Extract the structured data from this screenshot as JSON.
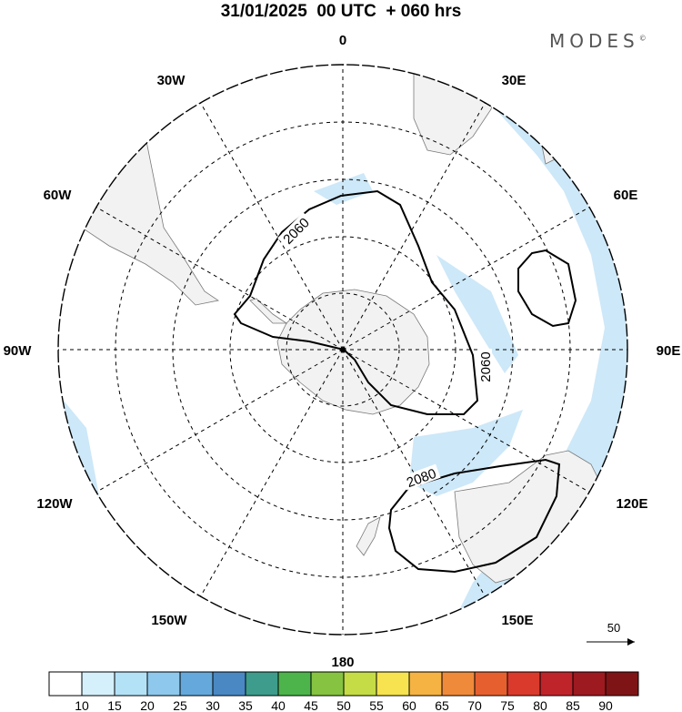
{
  "title": "31/01/2025  00 UTC  + 060 hrs",
  "brand": "MODES",
  "brand_mark": "©",
  "map": {
    "projection": "south-polar-stereographic",
    "longitude_labels": [
      "0",
      "30E",
      "60E",
      "90E",
      "120E",
      "150E",
      "180",
      "150W",
      "120W",
      "90W",
      "60W",
      "30W"
    ],
    "contour_labels": [
      "2060",
      "2060",
      "2080"
    ],
    "wind_reference": "50"
  },
  "colorbar": {
    "ticks": [
      "10",
      "15",
      "20",
      "25",
      "30",
      "35",
      "40",
      "45",
      "50",
      "55",
      "60",
      "65",
      "70",
      "75",
      "80",
      "85",
      "90"
    ],
    "colors": [
      "#ffffff",
      "#d5f0fb",
      "#b3e2f7",
      "#8ec8ec",
      "#65a9dc",
      "#4a88c3",
      "#3e9c8c",
      "#4cb44a",
      "#86c341",
      "#c5dc46",
      "#f6e34f",
      "#f5b343",
      "#ef8a3a",
      "#e6602f",
      "#d93a2c",
      "#c0242b",
      "#9c1a20",
      "#7f1416"
    ]
  },
  "colors": {
    "land": "#f2f2f2",
    "coast": "#7a7a7a",
    "wind_shade": "#cde8f8",
    "contour": "#000000"
  }
}
